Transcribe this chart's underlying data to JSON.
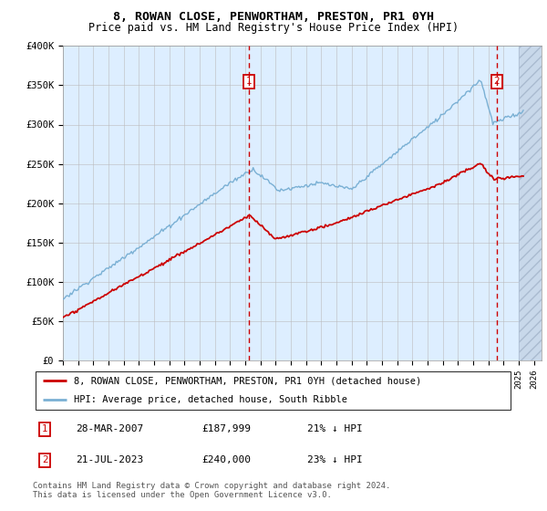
{
  "title": "8, ROWAN CLOSE, PENWORTHAM, PRESTON, PR1 0YH",
  "subtitle": "Price paid vs. HM Land Registry's House Price Index (HPI)",
  "legend_line1": "8, ROWAN CLOSE, PENWORTHAM, PRESTON, PR1 0YH (detached house)",
  "legend_line2": "HPI: Average price, detached house, South Ribble",
  "annotation1_date": "28-MAR-2007",
  "annotation1_price": "£187,999",
  "annotation1_hpi": "21% ↓ HPI",
  "annotation2_date": "21-JUL-2023",
  "annotation2_price": "£240,000",
  "annotation2_hpi": "23% ↓ HPI",
  "footer": "Contains HM Land Registry data © Crown copyright and database right 2024.\nThis data is licensed under the Open Government Licence v3.0.",
  "line_red_color": "#cc0000",
  "line_blue_color": "#7ab0d4",
  "bg_color": "#ddeeff",
  "grid_color": "#bbbbbb",
  "xmin": 1995.0,
  "xmax": 2026.5,
  "ymin": 0,
  "ymax": 400000,
  "sale1_x": 2007.24,
  "sale2_x": 2023.55,
  "hatch_start": 2025.0,
  "yticks": [
    0,
    50000,
    100000,
    150000,
    200000,
    250000,
    300000,
    350000,
    400000
  ],
  "ylabels": [
    "£0",
    "£50K",
    "£100K",
    "£150K",
    "£200K",
    "£250K",
    "£300K",
    "£350K",
    "£400K"
  ],
  "xticks": [
    1995,
    1996,
    1997,
    1998,
    1999,
    2000,
    2001,
    2002,
    2003,
    2004,
    2005,
    2006,
    2007,
    2008,
    2009,
    2010,
    2011,
    2012,
    2013,
    2014,
    2015,
    2016,
    2017,
    2018,
    2019,
    2020,
    2021,
    2022,
    2023,
    2024,
    2025,
    2026
  ]
}
